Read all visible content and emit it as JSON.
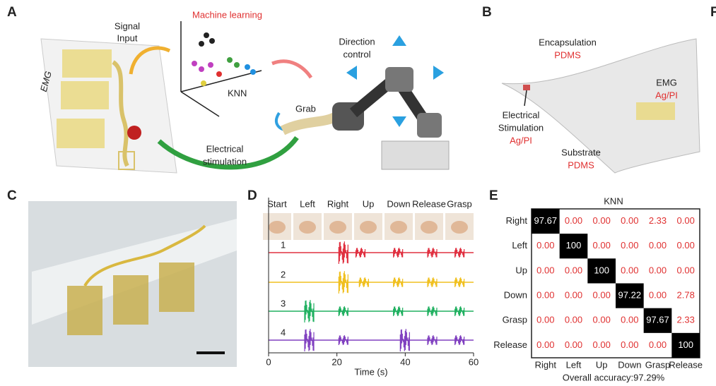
{
  "panels": {
    "a": {
      "label": "A",
      "machine_learning": "Machine learning",
      "signal_line1": "Signal",
      "signal_line2": "Input",
      "emg": "EMG",
      "knn": "KNN",
      "direction_line1": "Direction",
      "direction_line2": "control",
      "grab": "Grab",
      "stim_line1": "Electrical",
      "stim_line2": "stimulation"
    },
    "b": {
      "label": "B",
      "encapsulation": "Encapsulation",
      "encapsulation_material": "PDMS",
      "emg": "EMG",
      "emg_material": "Ag/PI",
      "stim_line1": "Electrical",
      "stim_line2": "Stimulation",
      "stim_material": "Ag/PI",
      "substrate": "Substrate",
      "substrate_material": "PDMS"
    },
    "c": {
      "label": "C"
    },
    "d": {
      "label": "D",
      "gestures": [
        "Start",
        "Left",
        "Right",
        "Up",
        "Down",
        "Release",
        "Grasp"
      ],
      "channels": [
        "1",
        "2",
        "3",
        "4"
      ],
      "x_label": "Time (s)",
      "xlim": [
        0,
        60
      ],
      "xticks": [
        0,
        20,
        40,
        60
      ]
    },
    "e": {
      "label": "E",
      "title": "KNN",
      "rows": [
        "Right",
        "Left",
        "Up",
        "Down",
        "Grasp",
        "Release"
      ],
      "columns": [
        "Right",
        "Left",
        "Up",
        "Down",
        "Grasp",
        "Release"
      ],
      "matrix": [
        [
          "97.67",
          "0.00",
          "0.00",
          "0.00",
          "2.33",
          "0.00"
        ],
        [
          "0.00",
          "100",
          "0.00",
          "0.00",
          "0.00",
          "0.00"
        ],
        [
          "0.00",
          "0.00",
          "100",
          "0.00",
          "0.00",
          "0.00"
        ],
        [
          "0.00",
          "0.00",
          "0.00",
          "97.22",
          "0.00",
          "2.78"
        ],
        [
          "0.00",
          "0.00",
          "0.00",
          "0.00",
          "97.67",
          "2.33"
        ],
        [
          "0.00",
          "0.00",
          "0.00",
          "0.00",
          "0.00",
          "100"
        ]
      ],
      "accuracy": "Overall accuracy:97.29%"
    },
    "f": {
      "label": "F"
    }
  }
}
